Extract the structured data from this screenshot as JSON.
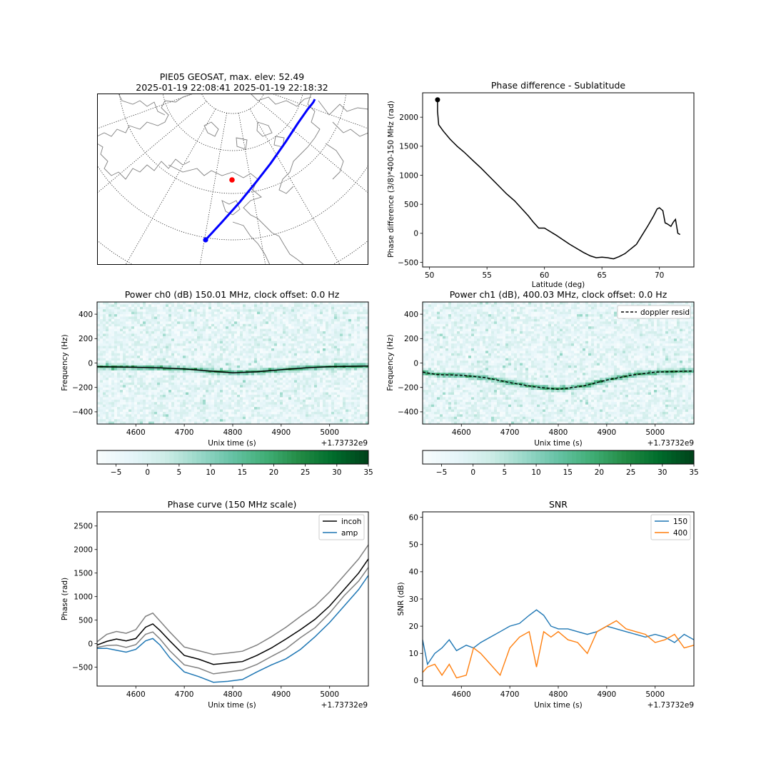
{
  "figure": {
    "map_title_line1": "PIE05 GEOSAT, max. elev: 52.49",
    "map_title_line2": "2025-01-19 22:08:41 2025-01-19 22:18:32"
  },
  "chart_data": [
    {
      "id": "map",
      "type": "map",
      "title": "PIE05 GEOSAT, max. elev: 52.49\n2025-01-19 22:08:41 2025-01-19 22:18:32",
      "projection": "north-polar",
      "track_color": "#0000ff",
      "station_color": "#ff0000",
      "track_start_color": "#0000ff"
    },
    {
      "id": "phase_diff",
      "type": "line",
      "title": "Phase difference - Sublatitude",
      "xlabel": "Latitude (deg)",
      "ylabel": "Phase difference (3/8)*400-150 MHz (rad)",
      "xlim": [
        49.4,
        73
      ],
      "ylim": [
        -580,
        2420
      ],
      "xticks": [
        50,
        55,
        60,
        65,
        70
      ],
      "yticks": [
        -500,
        0,
        500,
        1000,
        1500,
        2000
      ],
      "start_marker": [
        50.7,
        2300
      ],
      "series": [
        {
          "color": "#000000",
          "x": [
            50.7,
            50.7,
            50.8,
            51.2,
            51.8,
            52.4,
            53.0,
            53.8,
            54.5,
            55.2,
            56.0,
            56.7,
            57.4,
            58.0,
            58.6,
            59.0,
            59.5,
            60.0,
            60.5,
            61.0,
            61.6,
            62.2,
            62.8,
            63.4,
            64.0,
            64.5,
            65.0,
            65.5,
            66.0,
            66.5,
            67.0,
            67.5,
            68.0,
            68.5,
            69.0,
            69.5,
            69.8,
            70.0,
            70.3,
            70.5,
            70.7,
            71.0,
            71.2,
            71.4,
            71.6,
            71.8
          ],
          "y": [
            2300,
            2100,
            1870,
            1760,
            1620,
            1500,
            1400,
            1250,
            1120,
            980,
            820,
            680,
            560,
            430,
            300,
            200,
            90,
            90,
            30,
            -30,
            -110,
            -190,
            -260,
            -330,
            -390,
            -420,
            -410,
            -420,
            -440,
            -400,
            -350,
            -270,
            -190,
            -30,
            130,
            300,
            420,
            440,
            390,
            180,
            160,
            120,
            190,
            240,
            0,
            -20
          ]
        }
      ]
    },
    {
      "id": "spectrogram_ch0",
      "type": "heatmap",
      "title": "Power ch0 (dB) 150.01 MHz, clock offset: 0.0 Hz",
      "xlabel": "Unix time (s)",
      "ylabel": "Frequency (Hz)",
      "x_offset_label": "+1.73732e9",
      "xlim": [
        4520,
        5080
      ],
      "ylim": [
        -500,
        500
      ],
      "xticks": [
        4600,
        4700,
        4800,
        4900,
        5000
      ],
      "yticks": [
        -400,
        -200,
        0,
        200,
        400
      ],
      "colormap": "BuGn",
      "color_range": [
        -8,
        35
      ],
      "colorbar_ticks": [
        -5,
        0,
        5,
        10,
        15,
        20,
        25,
        30,
        35
      ],
      "doppler_curve": {
        "x": [
          4520,
          4600,
          4650,
          4700,
          4750,
          4800,
          4850,
          4900,
          4950,
          5000,
          5080
        ],
        "y": [
          -30,
          -35,
          -40,
          -48,
          -65,
          -80,
          -72,
          -55,
          -40,
          -30,
          -25
        ]
      }
    },
    {
      "id": "spectrogram_ch1",
      "type": "heatmap",
      "title": "Power ch1 (dB), 400.03 MHz, clock offset: 0.0 Hz",
      "xlabel": "Unix time (s)",
      "ylabel": "Frequency (Hz)",
      "x_offset_label": "+1.73732e9",
      "xlim": [
        4520,
        5080
      ],
      "ylim": [
        -500,
        500
      ],
      "xticks": [
        4600,
        4700,
        4800,
        4900,
        5000
      ],
      "yticks": [
        -400,
        -200,
        0,
        200,
        400
      ],
      "colormap": "BuGn",
      "color_range": [
        -8,
        35
      ],
      "colorbar_ticks": [
        -5,
        0,
        5,
        10,
        15,
        20,
        25,
        30,
        35
      ],
      "legend": [
        "doppler resid"
      ],
      "legend_position": "upper-right",
      "doppler_curve": {
        "x": [
          4520,
          4550,
          4600,
          4650,
          4700,
          4750,
          4800,
          4850,
          4900,
          4950,
          5000,
          5080
        ],
        "y": [
          -75,
          -95,
          -100,
          -120,
          -160,
          -195,
          -215,
          -190,
          -140,
          -100,
          -75,
          -65
        ]
      }
    },
    {
      "id": "phase_curve",
      "type": "line",
      "title": "Phase curve (150 MHz scale)",
      "xlabel": "Unix time (s)",
      "ylabel": "Phase (rad)",
      "x_offset_label": "+1.73732e9",
      "xlim": [
        4520,
        5080
      ],
      "ylim": [
        -900,
        2800
      ],
      "xticks": [
        4600,
        4700,
        4800,
        4900,
        5000
      ],
      "yticks": [
        -500,
        0,
        500,
        1000,
        1500,
        2000,
        2500
      ],
      "legend": [
        "incoh",
        "amp"
      ],
      "legend_position": "upper-right",
      "x": [
        4520,
        4540,
        4560,
        4580,
        4600,
        4620,
        4635,
        4650,
        4670,
        4700,
        4730,
        4760,
        4790,
        4820,
        4850,
        4880,
        4910,
        4940,
        4970,
        5000,
        5030,
        5060,
        5080
      ],
      "series": [
        {
          "name": "incoh",
          "color": "#000000",
          "values": [
            -30,
            50,
            100,
            60,
            110,
            350,
            420,
            280,
            60,
            -250,
            -330,
            -440,
            -410,
            -380,
            -250,
            -90,
            100,
            300,
            520,
            800,
            1150,
            1500,
            1800
          ]
        },
        {
          "color": "#808080",
          "values": [
            40,
            200,
            260,
            220,
            300,
            580,
            650,
            480,
            250,
            -70,
            -150,
            -230,
            -200,
            -160,
            -30,
            150,
            350,
            580,
            800,
            1100,
            1450,
            1800,
            2100
          ]
        },
        {
          "color": "#808080",
          "values": [
            -80,
            -40,
            -30,
            -80,
            -20,
            200,
            250,
            100,
            -150,
            -450,
            -520,
            -640,
            -600,
            -560,
            -440,
            -270,
            -110,
            130,
            340,
            650,
            1020,
            1330,
            1620
          ]
        },
        {
          "name": "amp",
          "color": "#1f77b4",
          "values": [
            -100,
            -100,
            -140,
            -180,
            -120,
            60,
            110,
            -30,
            -300,
            -600,
            -700,
            -820,
            -800,
            -760,
            -600,
            -450,
            -320,
            -120,
            150,
            450,
            800,
            1150,
            1450
          ]
        }
      ]
    },
    {
      "id": "snr",
      "type": "line",
      "title": "SNR",
      "xlabel": "Unix time (s)",
      "ylabel": "SNR (dB)",
      "x_offset_label": "+1.73732e9",
      "xlim": [
        4520,
        5080
      ],
      "ylim": [
        -2,
        62
      ],
      "xticks": [
        4600,
        4700,
        4800,
        4900,
        5000
      ],
      "yticks": [
        0,
        10,
        20,
        30,
        40,
        50,
        60
      ],
      "legend": [
        "150",
        "400"
      ],
      "legend_position": "upper-right",
      "x": [
        4520,
        4530,
        4545,
        4560,
        4575,
        4590,
        4610,
        4625,
        4640,
        4660,
        4680,
        4700,
        4720,
        4740,
        4755,
        4770,
        4785,
        4800,
        4820,
        4840,
        4860,
        4880,
        4900,
        4920,
        4940,
        4960,
        4980,
        5000,
        5020,
        5040,
        5060,
        5080
      ],
      "series": [
        {
          "name": "150",
          "color": "#1f77b4",
          "values": [
            15,
            6,
            10,
            12,
            15,
            11,
            13,
            12,
            14,
            16,
            18,
            20,
            21,
            24,
            26,
            24,
            20,
            19,
            19,
            18,
            17,
            18,
            20,
            19,
            18,
            17,
            16,
            17,
            16,
            14,
            17,
            15
          ]
        },
        {
          "name": "400",
          "color": "#ff7f0e",
          "values": [
            3,
            5,
            6,
            2,
            6,
            1,
            2,
            12,
            10,
            6,
            2,
            12,
            16,
            18,
            5,
            18,
            16,
            18,
            15,
            14,
            10,
            18,
            20,
            22,
            19,
            18,
            17,
            14,
            15,
            17,
            12,
            13
          ]
        }
      ]
    }
  ]
}
